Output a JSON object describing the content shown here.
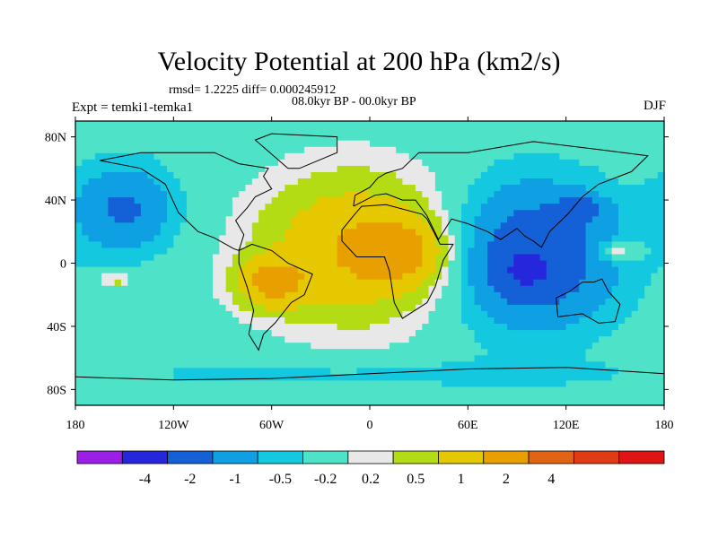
{
  "header": {
    "title": "Velocity Potential at 200 hPa (km2/s)",
    "stats": "rmsd= 1.2225 diff= 0.000245912",
    "subtitle": "08.0kyr BP - 00.0kyr BP",
    "left_label": "Expt = temki1-temka1",
    "right_label": "DJF"
  },
  "chart_data": {
    "type": "heatmap",
    "title": "Velocity Potential at 200 hPa (km2/s)",
    "variable": "velocity potential anomaly",
    "units": "km2/s",
    "x_range": [
      -180,
      180
    ],
    "y_range": [
      -90,
      90
    ],
    "x_ticks": [
      {
        "value": -180,
        "label": "180"
      },
      {
        "value": -120,
        "label": "120W"
      },
      {
        "value": -60,
        "label": "60W"
      },
      {
        "value": 0,
        "label": "0"
      },
      {
        "value": 60,
        "label": "60E"
      },
      {
        "value": 120,
        "label": "120E"
      },
      {
        "value": 180,
        "label": "180"
      }
    ],
    "y_ticks": [
      {
        "value": 80,
        "label": "80N"
      },
      {
        "value": 40,
        "label": "40N"
      },
      {
        "value": 0,
        "label": "0"
      },
      {
        "value": -40,
        "label": "40S"
      },
      {
        "value": -80,
        "label": "80S"
      }
    ],
    "colorbar": {
      "colors": [
        "#9b1fe6",
        "#2626dc",
        "#1460d6",
        "#0ea0e2",
        "#14c8e0",
        "#4ee2c8",
        "#e8e8e8",
        "#b4dc14",
        "#e6c800",
        "#e8a000",
        "#e06414",
        "#e03c14",
        "#e01414"
      ],
      "labels": [
        "-4",
        "-2",
        "-1",
        "-0.5",
        "-0.2",
        "0.2",
        "0.5",
        "1",
        "2",
        "4"
      ]
    },
    "field": {
      "background_value": 0,
      "features": [
        {
          "name": "Atlantic-Africa positive anomaly",
          "lon": -10,
          "lat": 10,
          "value": 1.8,
          "width_lon": 55,
          "width_lat": 45
        },
        {
          "name": "Africa peak",
          "lon": 15,
          "lat": 8,
          "value": 2.2,
          "width_lon": 25,
          "width_lat": 18
        },
        {
          "name": "South America peak",
          "lon": -60,
          "lat": -12,
          "value": 2.2,
          "width_lon": 20,
          "width_lat": 15
        },
        {
          "name": "Indian Ocean negative anomaly",
          "lon": 100,
          "lat": 5,
          "value": -1.6,
          "width_lon": 50,
          "width_lat": 45
        },
        {
          "name": "Indian Ocean minimum",
          "lon": 95,
          "lat": -5,
          "value": -0.9,
          "width_lon": 18,
          "width_lat": 14
        },
        {
          "name": "East Asia minimum",
          "lon": 130,
          "lat": 35,
          "value": -0.9,
          "width_lon": 14,
          "width_lat": 8
        },
        {
          "name": "North Pacific negative",
          "lon": -150,
          "lat": 35,
          "value": -1.1,
          "width_lon": 30,
          "width_lat": 28
        },
        {
          "name": "Southern negative belt",
          "lon": 0,
          "lat": -70,
          "value": -0.3,
          "width_lon": 200,
          "width_lat": 10
        },
        {
          "name": "Western Pacific positive",
          "lon": 150,
          "lat": 8,
          "value": 0.8,
          "width_lon": 14,
          "width_lat": 6
        },
        {
          "name": "Central Pacific positive",
          "lon": -155,
          "lat": -10,
          "value": 0.7,
          "width_lon": 10,
          "width_lat": 5
        }
      ]
    }
  }
}
